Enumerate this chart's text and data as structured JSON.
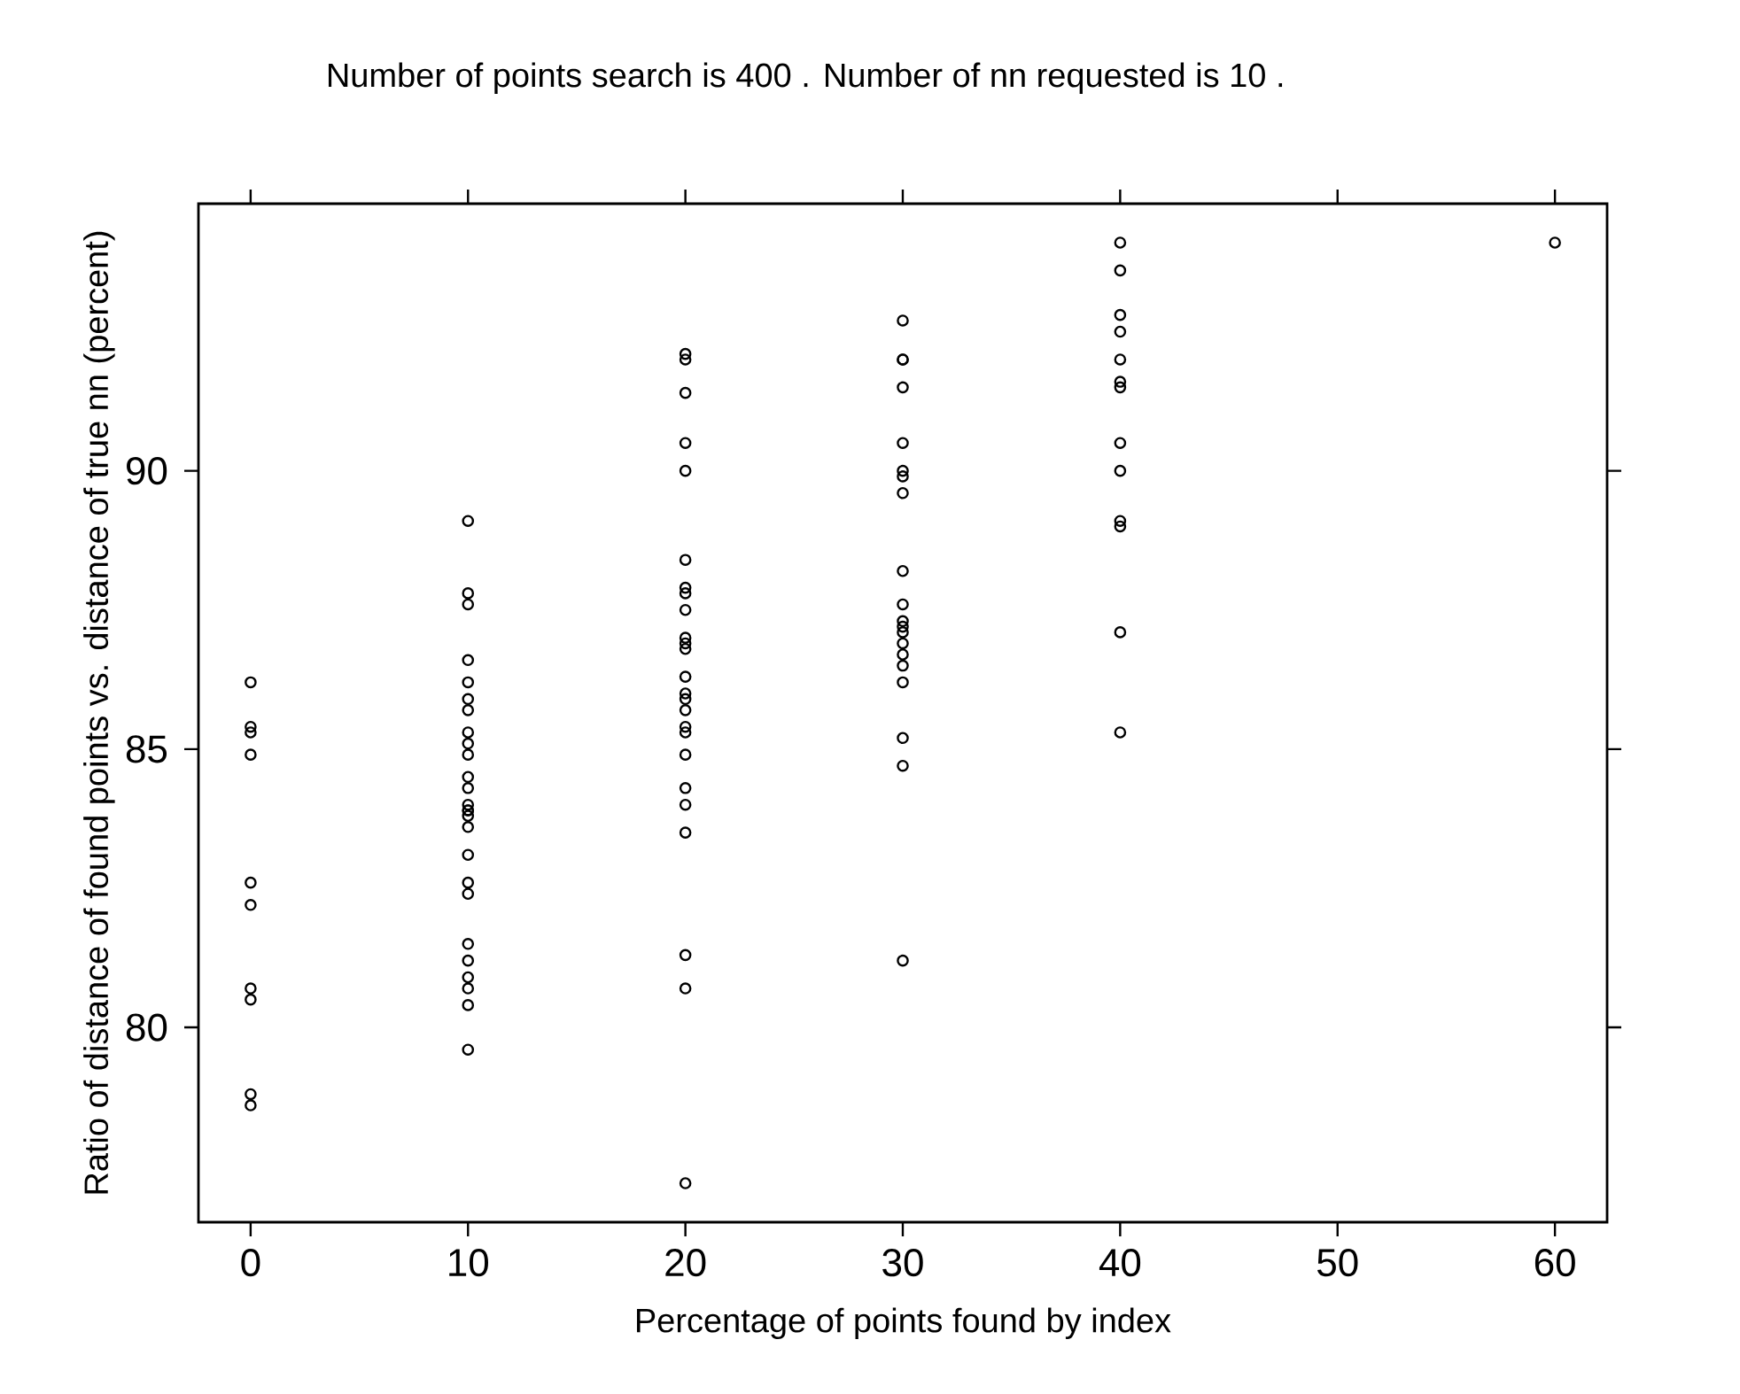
{
  "chart_data": {
    "type": "scatter",
    "title": "Number of points search is 400 . Number of nn requested is 10 .",
    "xlabel": "Percentage of points found by index",
    "ylabel": "Ratio of distance of found points vs. distance of true nn (percent)",
    "xlim": [
      -2.4,
      62.4
    ],
    "ylim": [
      76.5,
      94.8
    ],
    "xticks": [
      0,
      10,
      20,
      30,
      40,
      50,
      60
    ],
    "yticks": [
      80,
      85,
      90
    ],
    "marker": "circle",
    "series": [
      {
        "color": "#000000",
        "x": [
          0,
          0,
          0,
          0,
          0,
          0,
          0,
          0,
          0,
          0,
          10,
          10,
          10,
          10,
          10,
          10,
          10,
          10,
          10,
          10,
          10,
          10,
          10,
          10,
          10,
          10,
          10,
          10,
          10,
          10,
          10,
          10,
          10,
          10,
          10,
          10,
          20,
          20,
          20,
          20,
          20,
          20,
          20,
          20,
          20,
          20,
          20,
          20,
          20,
          20,
          20,
          20,
          20,
          20,
          20,
          20,
          20,
          20,
          20,
          20,
          20,
          30,
          30,
          30,
          30,
          30,
          30,
          30,
          30,
          30,
          30,
          30,
          30,
          30,
          30,
          30,
          30,
          30,
          30,
          30,
          30,
          40,
          40,
          40,
          40,
          40,
          40,
          40,
          40,
          40,
          40,
          40,
          40,
          40,
          60
        ],
        "values": [
          86.2,
          85.4,
          85.3,
          84.9,
          82.6,
          82.2,
          80.7,
          80.5,
          78.8,
          78.6,
          89.1,
          87.8,
          87.6,
          86.6,
          86.2,
          85.9,
          85.7,
          85.3,
          85.1,
          84.9,
          84.5,
          84.3,
          84.0,
          83.9,
          83.9,
          83.8,
          83.6,
          83.1,
          82.6,
          82.4,
          81.5,
          81.2,
          80.9,
          80.7,
          80.4,
          79.6,
          92.1,
          92.0,
          91.4,
          90.5,
          90.0,
          88.4,
          87.9,
          87.8,
          87.5,
          87.0,
          86.9,
          86.8,
          86.3,
          86.0,
          85.9,
          85.7,
          85.4,
          85.3,
          84.9,
          84.3,
          84.0,
          83.5,
          81.3,
          80.7,
          77.2,
          92.7,
          92.0,
          92.0,
          91.5,
          90.5,
          90.0,
          89.9,
          89.6,
          88.2,
          87.6,
          87.3,
          87.2,
          87.1,
          86.9,
          86.7,
          86.5,
          86.2,
          85.2,
          84.7,
          81.2,
          94.1,
          93.6,
          92.8,
          92.5,
          92.0,
          91.6,
          91.5,
          90.5,
          90.0,
          89.1,
          89.0,
          87.1,
          85.3,
          94.1
        ]
      }
    ]
  }
}
